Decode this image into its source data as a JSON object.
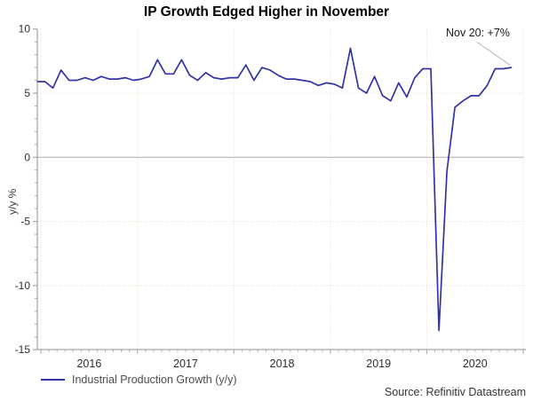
{
  "title": "IP Growth Edged Higher in November",
  "annotation_label": "Nov 20: +7%",
  "legend": {
    "series_label": "Industrial Production Growth (y/y)"
  },
  "source": "Source: Refinitiv Datastream",
  "y_axis_title": "y/y %",
  "colors": {
    "line": "#3333a6",
    "axis": "#a2aaa2",
    "grid_vertical": "#e6debf",
    "grid_horizontal": "#e2dcc2",
    "zero_line": "#ababab",
    "annotation_pointer": "#b5b5b5",
    "tick_text": "#2e2e2e"
  },
  "chart_data": {
    "type": "line",
    "title": "IP Growth Edged Higher in November",
    "xlabel": "",
    "ylabel": "y/y %",
    "ylim": [
      -15,
      10
    ],
    "yticks": [
      10,
      5,
      0,
      -5,
      -10,
      -15
    ],
    "y_minor_tick_interval": 1,
    "x_year_labels": [
      "2016",
      "2017",
      "2018",
      "2019",
      "2020"
    ],
    "frequency": "monthly",
    "x_start": "2015-12",
    "x_end": "2020-11",
    "grid": "dotted vertical lines at year boundaries; dotted horizontal at 5, -5, -10; solid gray line at 0",
    "legend_position": "bottom-left",
    "annotation": {
      "text": "Nov 20: +7%",
      "points_to": {
        "x": "2020-11",
        "y": 7.0
      }
    },
    "series": [
      {
        "name": "Industrial Production Growth (y/y)",
        "values": [
          5.9,
          5.9,
          5.4,
          6.8,
          6.0,
          6.0,
          6.2,
          6.0,
          6.3,
          6.1,
          6.1,
          6.2,
          6.0,
          6.1,
          6.3,
          7.6,
          6.5,
          6.5,
          7.6,
          6.4,
          6.0,
          6.6,
          6.2,
          6.1,
          6.2,
          6.2,
          7.2,
          6.0,
          7.0,
          6.8,
          6.4,
          6.1,
          6.1,
          6.0,
          5.9,
          5.6,
          5.8,
          5.7,
          5.4,
          8.5,
          5.4,
          5.0,
          6.3,
          4.8,
          4.4,
          5.8,
          4.7,
          6.2,
          6.9,
          6.9,
          -13.5,
          -1.1,
          3.9,
          4.4,
          4.8,
          4.8,
          5.6,
          6.9,
          6.9,
          7.0
        ]
      }
    ]
  }
}
